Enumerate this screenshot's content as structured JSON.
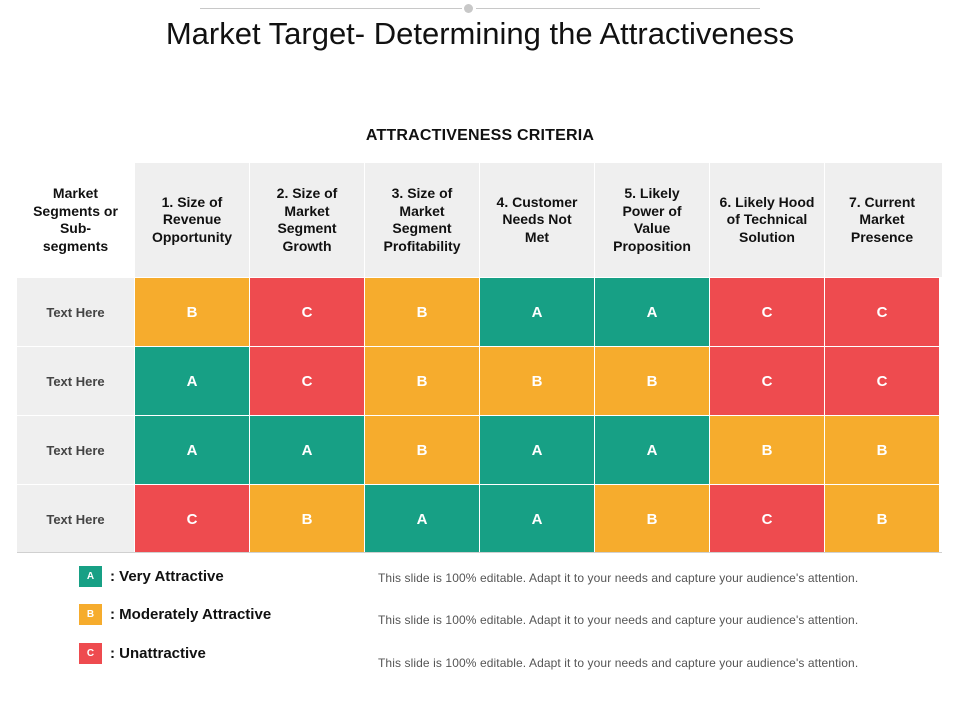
{
  "title": "Market Target- Determining the Attractiveness",
  "criteria_title": "ATTRACTIVENESS CRITERIA",
  "colors": {
    "A": "#17a085",
    "B": "#f6ac2d",
    "C": "#ee4b4f"
  },
  "header": {
    "first": [
      "Market",
      "Segments or",
      "Sub-",
      "segments"
    ],
    "columns": [
      [
        "1. Size of",
        "Revenue",
        "Opportunity"
      ],
      [
        "2. Size of",
        "Market",
        "Segment",
        "Growth"
      ],
      [
        "3. Size of",
        "Market",
        "Segment",
        "Profitability"
      ],
      [
        "4. Customer",
        "Needs Not",
        "Met"
      ],
      [
        "5. Likely",
        "Power of",
        "Value",
        "Proposition"
      ],
      [
        "6. Likely Hood",
        "of Technical",
        "Solution"
      ],
      [
        "7. Current",
        "Market",
        "Presence"
      ]
    ]
  },
  "rows": [
    {
      "label": "Text Here",
      "ratings": [
        "B",
        "C",
        "B",
        "A",
        "A",
        "C",
        "C"
      ]
    },
    {
      "label": "Text Here",
      "ratings": [
        "A",
        "C",
        "B",
        "B",
        "B",
        "C",
        "C"
      ]
    },
    {
      "label": "Text Here",
      "ratings": [
        "A",
        "A",
        "B",
        "A",
        "A",
        "B",
        "B"
      ]
    },
    {
      "label": "Text Here",
      "ratings": [
        "C",
        "B",
        "A",
        "A",
        "B",
        "C",
        "B"
      ]
    }
  ],
  "legend": [
    {
      "key": "A",
      "label": ": Very Attractive"
    },
    {
      "key": "B",
      "label": ": Moderately Attractive"
    },
    {
      "key": "C",
      "label": ": Unattractive"
    }
  ],
  "notes": [
    "This slide is 100% editable. Adapt it to your needs and capture your audience's attention.",
    "This slide is 100% editable. Adapt it to your needs and capture your audience's attention.",
    "This slide is 100% editable. Adapt it to your needs and capture your audience's attention."
  ]
}
